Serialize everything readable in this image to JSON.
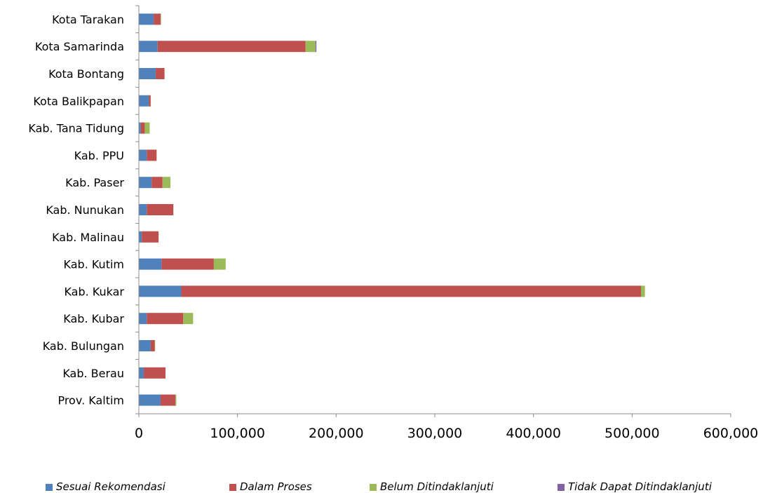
{
  "chart_data": {
    "type": "bar",
    "orientation": "horizontal",
    "stacked": true,
    "categories": [
      "Kota Tarakan",
      "Kota Samarinda",
      "Kota Bontang",
      "Kota Balikpapan",
      "Kab. Tana Tidung",
      "Kab. PPU",
      "Kab. Paser",
      "Kab. Nunukan",
      "Kab. Malinau",
      "Kab. Kutim",
      "Kab. Kukar",
      "Kab. Kubar",
      "Kab. Bulungan",
      "Kab. Berau",
      "Prov. Kaltim"
    ],
    "series": [
      {
        "name": "Sesuai Rekomendasi",
        "color": "#4F81BD",
        "values": [
          15000,
          19000,
          17000,
          10000,
          2000,
          8000,
          13000,
          8000,
          3000,
          23000,
          43000,
          8000,
          12000,
          5000,
          22000
        ]
      },
      {
        "name": "Dalam Proses",
        "color": "#C0504D",
        "values": [
          7000,
          150000,
          9000,
          2000,
          4000,
          10000,
          11000,
          27000,
          17000,
          53000,
          466000,
          37000,
          4000,
          22000,
          15000
        ]
      },
      {
        "name": "Belum Ditindaklanjuti",
        "color": "#9BBB59",
        "values": [
          500,
          10000,
          0,
          0,
          5000,
          0,
          8000,
          0,
          0,
          12000,
          4000,
          10000,
          500,
          0,
          1000
        ]
      },
      {
        "name": "Tidak Dapat Ditindaklanjuti",
        "color": "#8064A2",
        "values": [
          0,
          1000,
          0,
          0,
          0,
          0,
          0,
          0,
          0,
          0,
          0,
          0,
          0,
          0,
          0
        ]
      }
    ],
    "xlim": [
      0,
      600000
    ],
    "xticks": [
      0,
      100000,
      200000,
      300000,
      400000,
      500000,
      600000
    ],
    "xtick_labels": [
      "0",
      "100,000",
      "200,000",
      "300,000",
      "400,000",
      "500,000",
      "600,000"
    ],
    "grid": false,
    "legend_position": "bottom",
    "title": "",
    "xlabel": "",
    "ylabel": ""
  }
}
